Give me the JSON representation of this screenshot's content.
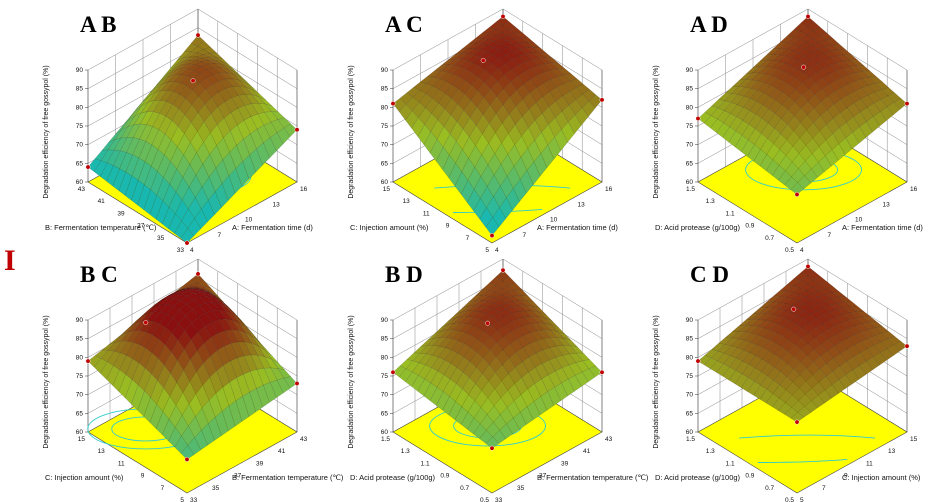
{
  "figure_label": "I",
  "colors": {
    "floor": "#ffff00",
    "contour": "#33cccc",
    "surface_low": "#18b8b0",
    "surface_mid": "#9abd22",
    "surface_high": "#8a1010",
    "point": "#c00000"
  },
  "chart_data": [
    {
      "type": "surface",
      "title": "A B",
      "zlabel": "Degradation efficiency of free gossypol (%)",
      "zlim": [
        60,
        90
      ],
      "zticks": [
        "60",
        "65",
        "70",
        "75",
        "80",
        "85",
        "90"
      ],
      "right_axis": {
        "label": "A: Fermentation time (d)",
        "ticks": [
          "4",
          "7",
          "10",
          "13",
          "16"
        ],
        "range": [
          4,
          16
        ]
      },
      "left_axis": {
        "label": "B: Fermentation temperature (℃)",
        "ticks": [
          "33",
          "35",
          "37",
          "39",
          "41",
          "43"
        ],
        "range": [
          33,
          43
        ]
      },
      "corners": {
        "front": 60.0,
        "right": 74.0,
        "back": 83.0,
        "left": 64.0
      },
      "peak": {
        "u": 0.55,
        "v": 0.55,
        "value": 85.5
      },
      "contour_circle": true
    },
    {
      "type": "surface",
      "title": "A C",
      "zlabel": "Degradation efficiency of free gossypol (%)",
      "zlim": [
        60,
        90
      ],
      "zticks": [
        "60",
        "65",
        "70",
        "75",
        "80",
        "85",
        "90"
      ],
      "right_axis": {
        "label": "A: Fermentation time (d)",
        "ticks": [
          "4",
          "7",
          "10",
          "13",
          "16"
        ],
        "range": [
          4,
          16
        ]
      },
      "left_axis": {
        "label": "C: Injection amount (%)",
        "ticks": [
          "5",
          "7",
          "9",
          "11",
          "13",
          "15"
        ],
        "range": [
          5,
          15
        ]
      },
      "corners": {
        "front": 62.0,
        "right": 82.0,
        "back": 88.0,
        "left": 81.0
      },
      "peak": {
        "u": 0.55,
        "v": 0.7,
        "value": 88.5
      },
      "contour_circle": false
    },
    {
      "type": "surface",
      "title": "A D",
      "zlabel": "Degradation efficiency of free gossypol (%)",
      "zlim": [
        60,
        90
      ],
      "zticks": [
        "60",
        "65",
        "70",
        "75",
        "80",
        "85",
        "90"
      ],
      "right_axis": {
        "label": "A: Fermentation time (d)",
        "ticks": [
          "4",
          "7",
          "10",
          "13",
          "16"
        ],
        "range": [
          4,
          16
        ]
      },
      "left_axis": {
        "label": "D: Acid protease (g/100g)",
        "ticks": [
          "0.5",
          "0.7",
          "0.9",
          "1.1",
          "1.3",
          "1.5"
        ],
        "range": [
          0.5,
          1.5
        ]
      },
      "corners": {
        "front": 73.0,
        "right": 81.0,
        "back": 88.0,
        "left": 77.0
      },
      "peak": {
        "u": 0.6,
        "v": 0.6,
        "value": 87.5
      },
      "contour_circle": true
    },
    {
      "type": "surface",
      "title": "B C",
      "zlabel": "Degradation efficiency of free gossypol (%)",
      "zlim": [
        60,
        90
      ],
      "zticks": [
        "60",
        "65",
        "70",
        "75",
        "80",
        "85",
        "90"
      ],
      "right_axis": {
        "label": "B: Fermentation temperature (℃)",
        "ticks": [
          "33",
          "35",
          "37",
          "39",
          "41",
          "43"
        ],
        "range": [
          33,
          43
        ]
      },
      "left_axis": {
        "label": "C: Injection amount (%)",
        "ticks": [
          "5",
          "7",
          "9",
          "11",
          "13",
          "15"
        ],
        "range": [
          5,
          15
        ]
      },
      "corners": {
        "front": 69.0,
        "right": 73.0,
        "back": 86.0,
        "left": 79.0
      },
      "peak": {
        "u": 0.3,
        "v": 0.75,
        "value": 88.5
      },
      "contour_circle": true
    },
    {
      "type": "surface",
      "title": "B D",
      "zlabel": "Degradation efficiency of free gossypol (%)",
      "zlim": [
        60,
        90
      ],
      "zticks": [
        "60",
        "65",
        "70",
        "75",
        "80",
        "85",
        "90"
      ],
      "right_axis": {
        "label": "B: Fermentation temperature (℃)",
        "ticks": [
          "33",
          "35",
          "37",
          "39",
          "41",
          "43"
        ],
        "range": [
          33,
          43
        ]
      },
      "left_axis": {
        "label": "D: Acid protease (g/100g)",
        "ticks": [
          "0.5",
          "0.7",
          "0.9",
          "1.1",
          "1.3",
          "1.5"
        ],
        "range": [
          0.5,
          1.5
        ]
      },
      "corners": {
        "front": 72.0,
        "right": 76.0,
        "back": 87.0,
        "left": 76.0
      },
      "peak": {
        "u": 0.5,
        "v": 0.6,
        "value": 87.5
      },
      "contour_circle": true
    },
    {
      "type": "surface",
      "title": "C D",
      "zlabel": "Degradation efficiency of free gossypol (%)",
      "zlim": [
        60,
        90
      ],
      "zticks": [
        "60",
        "65",
        "70",
        "75",
        "80",
        "85",
        "90"
      ],
      "right_axis": {
        "label": "C: Injection amount (%)",
        "ticks": [
          "5",
          "7",
          "9",
          "11",
          "13",
          "15"
        ],
        "range": [
          5,
          15
        ]
      },
      "left_axis": {
        "label": "D: Acid protease (g/100g)",
        "ticks": [
          "0.5",
          "0.7",
          "0.9",
          "1.1",
          "1.3",
          "1.5"
        ],
        "range": [
          0.5,
          1.5
        ]
      },
      "corners": {
        "front": 79.0,
        "right": 83.0,
        "back": 88.0,
        "left": 79.0
      },
      "peak": {
        "u": 0.6,
        "v": 0.7,
        "value": 88.0
      },
      "contour_circle": false
    }
  ]
}
